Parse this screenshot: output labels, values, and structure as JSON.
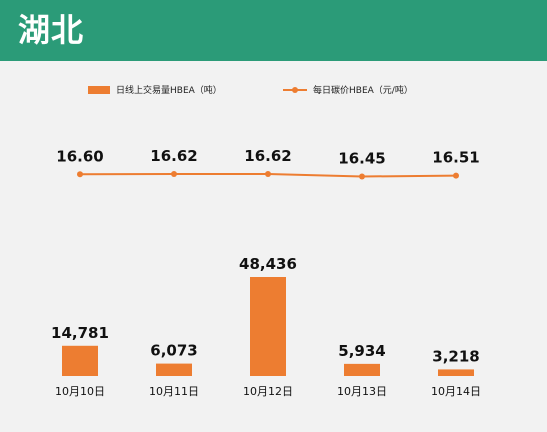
{
  "header": {
    "title": "湖北"
  },
  "colors": {
    "header_bg": "#2b9b78",
    "bar": "#ed7d31",
    "line": "#ed7d31",
    "background": "#f2f2f2"
  },
  "chart_data": {
    "type": "bar+line",
    "categories": [
      "10月10日",
      "10月11日",
      "10月12日",
      "10月13日",
      "10月14日"
    ],
    "series": [
      {
        "name": "日线上交易量HBEA（吨）",
        "type": "bar",
        "values": [
          14781,
          6073,
          48436,
          5934,
          3218
        ]
      },
      {
        "name": "每日碳价HBEA（元/吨）",
        "type": "line",
        "values": [
          16.6,
          16.62,
          16.62,
          16.45,
          16.51
        ]
      }
    ],
    "bar_labels": [
      "14,781",
      "6,073",
      "48,436",
      "5,934",
      "3,218"
    ],
    "line_labels": [
      "16.60",
      "16.62",
      "16.62",
      "16.45",
      "16.51"
    ],
    "legend_position": "top",
    "grid": false
  }
}
